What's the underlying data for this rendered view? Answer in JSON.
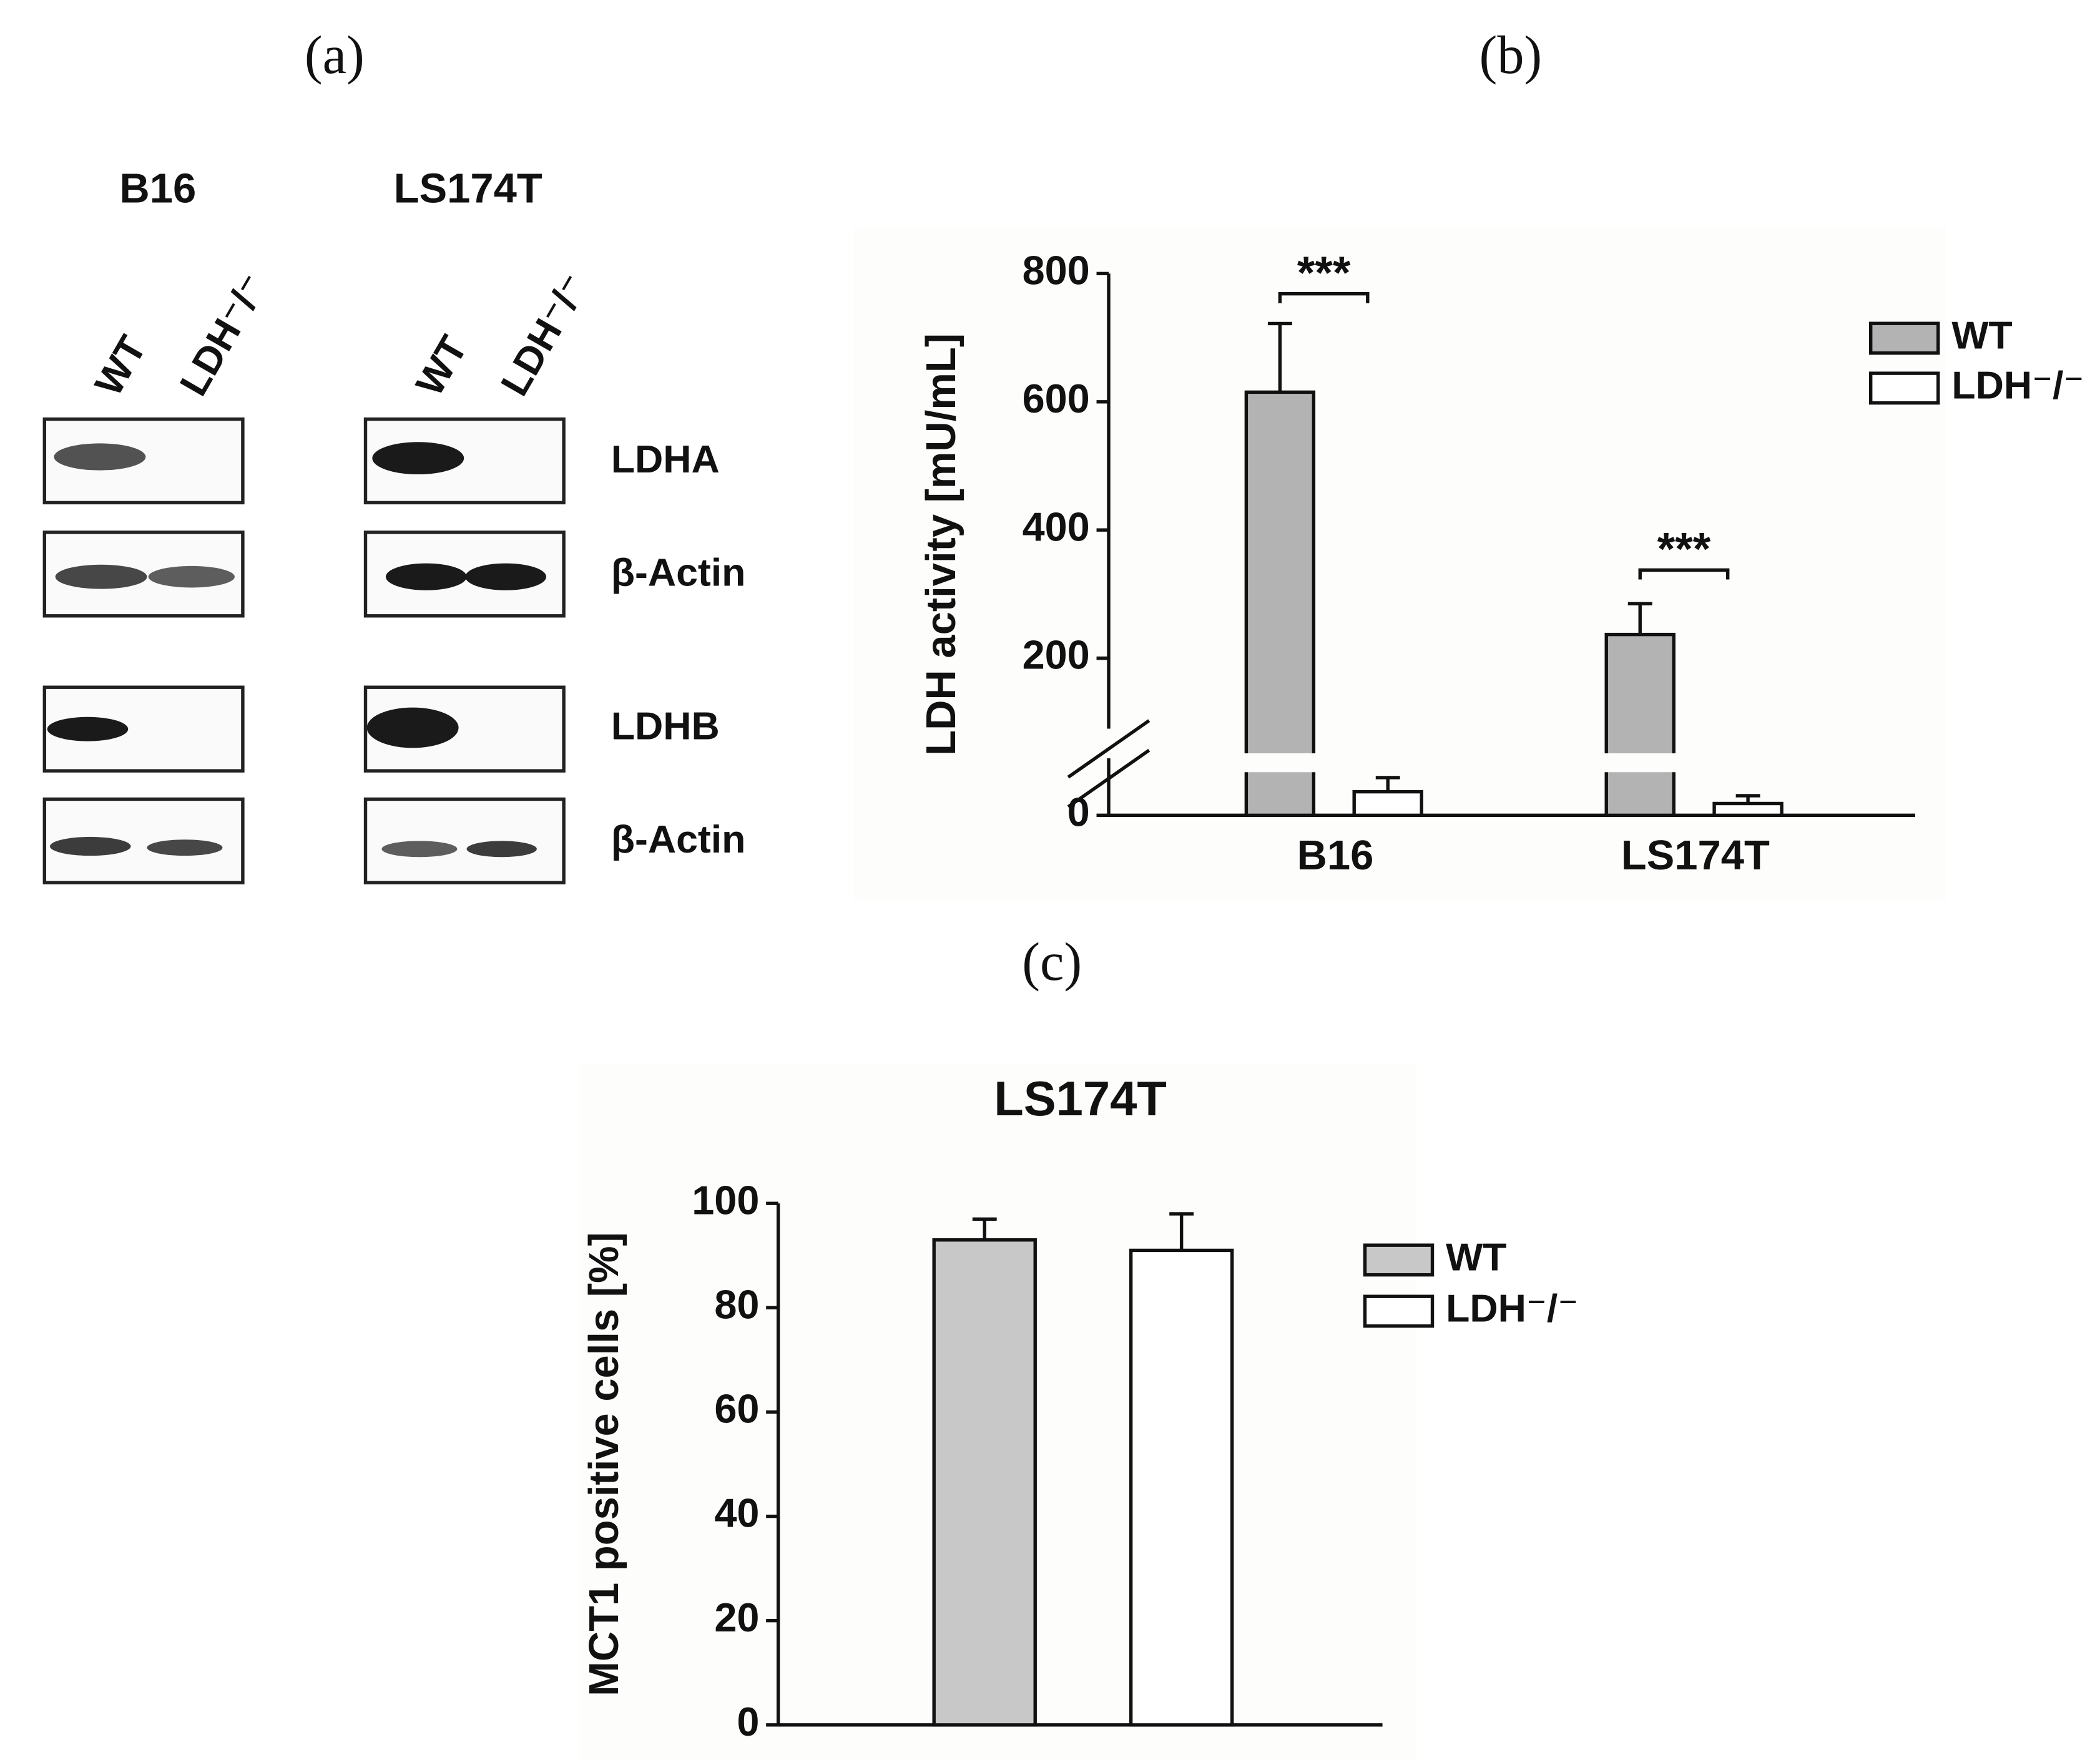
{
  "figure": {
    "panel_labels": [
      "(a)",
      "(b)",
      "(c)"
    ]
  },
  "blot": {
    "cell_lines": [
      "B16",
      "LS174T"
    ],
    "lanes": [
      "WT",
      "LDH⁻/⁻"
    ],
    "proteins": [
      "LDHA",
      "β-Actin",
      "LDHB",
      "β-Actin"
    ]
  },
  "chart_data": [
    {
      "type": "bar",
      "ylabel": "LDH activity [mU/mL]",
      "categories": [
        "B16",
        "LS174T"
      ],
      "series": [
        {
          "name": "WT",
          "color": "#b3b3b3",
          "values": [
            615,
            237
          ],
          "errors": [
            107,
            48
          ]
        },
        {
          "name": "LDH⁻/⁻",
          "color": "#ffffff",
          "values": [
            30,
            15
          ],
          "errors": [
            18,
            10
          ]
        }
      ],
      "annotations": [
        "***",
        "***"
      ],
      "ylim": [
        0,
        800
      ],
      "yticks": [
        0,
        200,
        400,
        600,
        800
      ],
      "axis_break": true,
      "legend": "right"
    },
    {
      "type": "bar",
      "title": "LS174T",
      "ylabel": "MCT1 positive cells [%]",
      "categories": [
        null
      ],
      "series": [
        {
          "name": "WT",
          "color": "#c8c8c8",
          "values": [
            93
          ],
          "errors": [
            4
          ]
        },
        {
          "name": "LDH⁻/⁻",
          "color": "#ffffff",
          "values": [
            91
          ],
          "errors": [
            7
          ]
        }
      ],
      "ylim": [
        0,
        100
      ],
      "yticks": [
        0,
        20,
        40,
        60,
        80,
        100
      ],
      "legend": "right"
    }
  ]
}
